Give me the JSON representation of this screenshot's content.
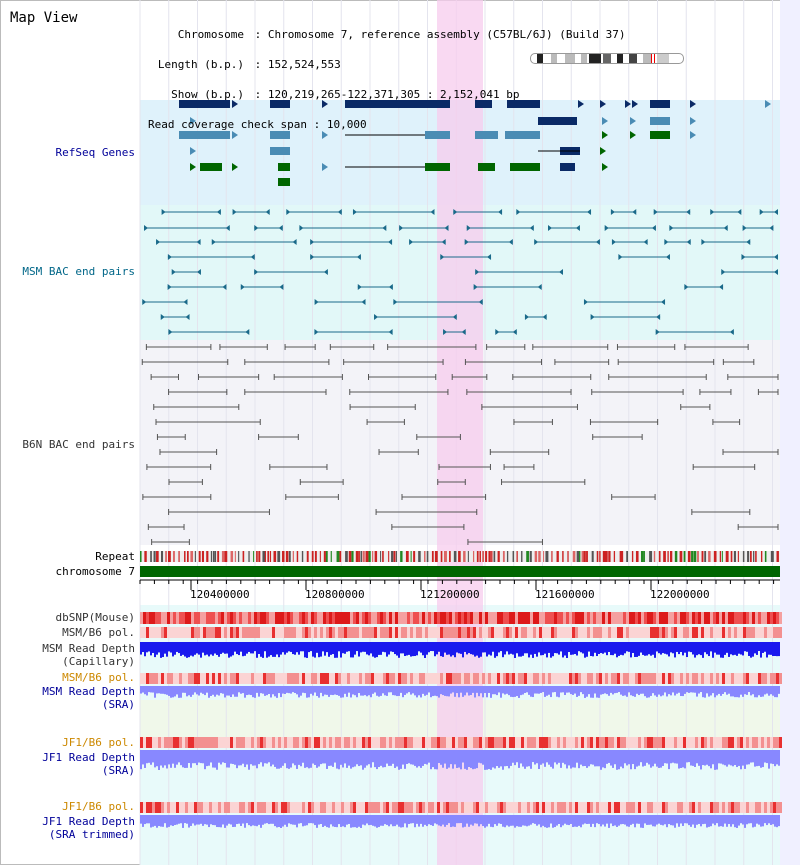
{
  "title": "Map View",
  "info": {
    "chromosome_key": "Chromosome",
    "chromosome_value": "Chromosome 7, reference assembly (C57BL/6J) (Build 37)",
    "length_key": "Length (b.p.)",
    "length_value": "152,524,553",
    "show_key": "Show (b.p.)",
    "show_value": "120,219,265-122,371,305 : 2,152,041 bp",
    "coverage_key": "Read coverage check span",
    "coverage_value": "10,000"
  },
  "tracks": {
    "refseq": "RefSeq Genes",
    "msm_bac": "MSM BAC end pairs",
    "b6n_bac": "B6N BAC end pairs",
    "repeat": "Repeat",
    "chromosome": "chromosome 7",
    "dbsnp": "dbSNP(Mouse)",
    "msm_b6_pol_1": "MSM/B6 pol.",
    "msm_read_depth_cap_1": "MSM Read Depth",
    "msm_read_depth_cap_2": "(Capillary)",
    "msm_b6_pol_2": "MSM/B6 pol.",
    "msm_read_depth_sra_1": "MSM Read Depth",
    "msm_read_depth_sra_2": "(SRA)",
    "jf1_b6_pol_1": "JF1/B6 pol.",
    "jf1_read_depth_sra_1": "JF1 Read Depth",
    "jf1_read_depth_sra_2": "(SRA)",
    "jf1_b6_pol_2": "JF1/B6 pol.",
    "jf1_read_depth_trim_1": "JF1 Read Depth",
    "jf1_read_depth_trim_2": "(SRA trimmed)"
  },
  "ruler": {
    "ticks": [
      "120400000",
      "120800000",
      "121200000",
      "121600000",
      "122000000"
    ]
  },
  "colors": {
    "refseq_bg": "#dff2fb",
    "msm_bg": "#e2f8f8",
    "b6n_bg": "#f3f3f8",
    "highlight": "#f7ccee",
    "gene_dark": "#0a2a66",
    "gene_mid": "#4a8cb4",
    "gene_green": "#006600",
    "bac_msm": "#1a6a8a",
    "bac_b6n": "#555555",
    "chromosome": "#006600",
    "depth_blue": "#1a1aee",
    "depth_light": "#8888ff",
    "label_blue": "#000099",
    "label_teal": "#006688",
    "label_orange": "#cc8800"
  }
}
